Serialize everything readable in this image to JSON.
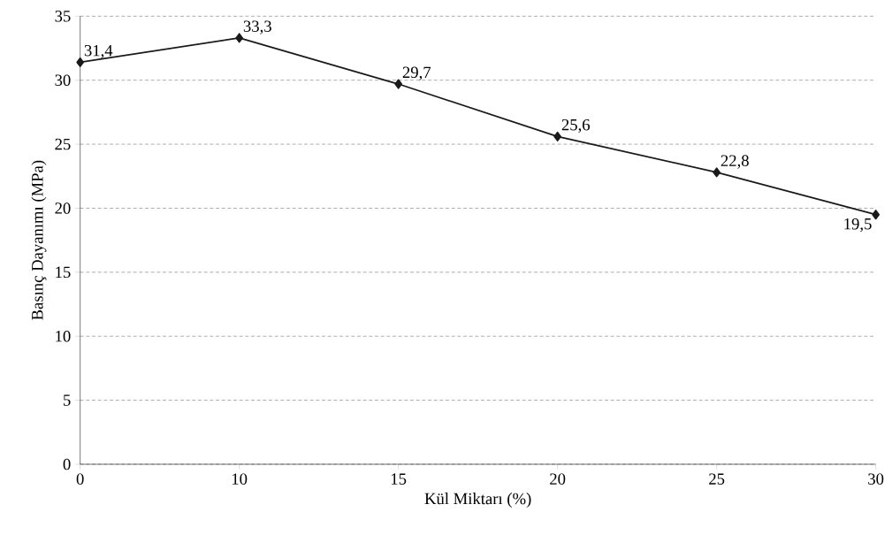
{
  "chart_data": {
    "type": "line",
    "xlabel": "Kül Miktarı (%)",
    "ylabel": "Basınç Dayanımı (MPa)",
    "categories": [
      "0",
      "10",
      "15",
      "20",
      "25",
      "30"
    ],
    "values": [
      31.4,
      33.3,
      29.7,
      25.6,
      22.8,
      19.5
    ],
    "value_labels": [
      "31,4",
      "33,3",
      "29,7",
      "25,6",
      "22,8",
      "19,5"
    ],
    "color": "#1a1a1a",
    "ylim": [
      0,
      35
    ],
    "yticks": [
      0,
      5,
      10,
      15,
      20,
      25,
      30,
      35
    ],
    "grid": "y",
    "marker": "diamond",
    "line_style": "solid"
  }
}
